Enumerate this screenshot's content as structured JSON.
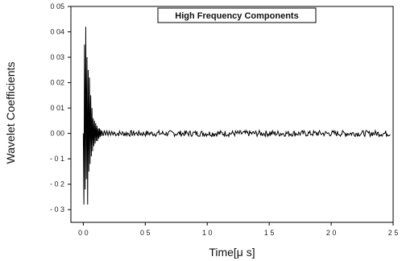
{
  "chart_data": {
    "type": "line",
    "xlabel": "Time[μ s]",
    "ylabel": "Wavelet Coefficients",
    "xlim": [
      -0.1,
      2.5
    ],
    "ylim": [
      -0.035,
      0.05
    ],
    "xticks": [
      0.0,
      0.5,
      1.0,
      1.5,
      2.0,
      2.5
    ],
    "xtick_labels": [
      "0 0",
      "0 5",
      "1 0",
      "1 5",
      "2 0",
      "2 5"
    ],
    "yticks": [
      -0.03,
      -0.02,
      -0.01,
      0.0,
      0.01,
      0.02,
      0.03,
      0.04,
      0.05
    ],
    "ytick_labels": [
      "- 0 3",
      "- 0 2",
      "- 0 1",
      "0 00",
      "0 01",
      "0 02",
      "0 03",
      "0 04",
      "0 05"
    ],
    "legend": {
      "text": "High Frequency Components",
      "position": "top-right"
    },
    "grid": false,
    "series": [
      {
        "x": [
          0.0,
          0.005,
          0.01,
          0.015,
          0.02,
          0.025,
          0.03,
          0.035,
          0.04,
          0.045,
          0.05,
          0.055,
          0.06,
          0.065,
          0.07,
          0.075,
          0.08,
          0.085,
          0.09,
          0.095,
          0.1,
          0.105,
          0.11,
          0.115,
          0.12,
          0.125,
          0.13,
          0.135,
          0.14,
          0.145,
          0.15,
          0.16,
          0.17,
          0.18,
          0.19,
          0.2,
          0.21,
          0.22,
          0.23,
          0.24,
          0.25
        ],
        "y": [
          0.0,
          -0.028,
          0.035,
          -0.022,
          0.042,
          -0.018,
          0.03,
          -0.028,
          0.025,
          -0.015,
          0.022,
          -0.012,
          0.015,
          -0.009,
          0.01,
          -0.007,
          0.006,
          -0.005,
          0.005,
          -0.004,
          0.004,
          -0.003,
          0.003,
          -0.003,
          0.002,
          -0.002,
          0.002,
          -0.0015,
          0.0015,
          -0.001,
          0.001,
          -0.001,
          0.0012,
          -0.0008,
          0.001,
          -0.0008,
          0.0009,
          -0.0007,
          0.0008,
          -0.0006,
          0.0007
        ]
      }
    ],
    "noise": {
      "x_from": 0.25,
      "x_to": 2.48,
      "amplitude": 0.0012
    }
  }
}
